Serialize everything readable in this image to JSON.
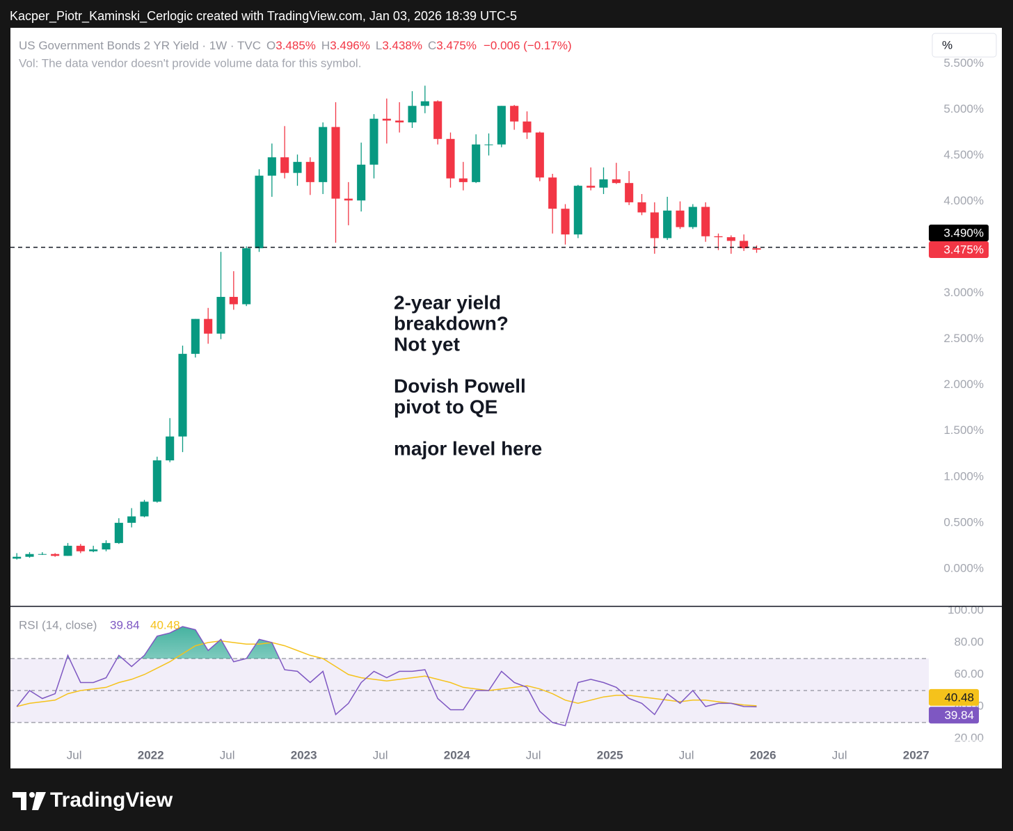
{
  "watermark": "Kacper_Piotr_Kaminski_Cerlogic created with TradingView.com, Jan 03, 2026 18:39 UTC-5",
  "footer": "TradingView",
  "unit_button": "%",
  "chart_data": {
    "type": "candlestick",
    "title": "US Government Bonds 2 YR Yield · 1W · TVC",
    "subtitle": "Vol: The data vendor doesn't provide volume data for this symbol.",
    "legend": {
      "labels": [
        "O",
        "H",
        "L",
        "C"
      ],
      "values": [
        "3.485%",
        "3.496%",
        "3.438%",
        "3.475%"
      ],
      "change": "−0.006 (−0.17%)"
    },
    "x": [
      "2021-02",
      "2021-03",
      "2021-04",
      "2021-05",
      "2021-06",
      "2021-07",
      "2021-08",
      "2021-09",
      "2021-10",
      "2021-11",
      "2021-12",
      "2022-01",
      "2022-02",
      "2022-03",
      "2022-04",
      "2022-05",
      "2022-06",
      "2022-07",
      "2022-08",
      "2022-09",
      "2022-10",
      "2022-11",
      "2022-12",
      "2023-01",
      "2023-02",
      "2023-03",
      "2023-04",
      "2023-05",
      "2023-06",
      "2023-07",
      "2023-08",
      "2023-09",
      "2023-10",
      "2023-11",
      "2023-12",
      "2024-01",
      "2024-02",
      "2024-03",
      "2024-04",
      "2024-05",
      "2024-06",
      "2024-07",
      "2024-08",
      "2024-09",
      "2024-10",
      "2024-11",
      "2024-12",
      "2025-01",
      "2025-02",
      "2025-03",
      "2025-04",
      "2025-05",
      "2025-06",
      "2025-07",
      "2025-08",
      "2025-09",
      "2025-10",
      "2025-11",
      "2025-12"
    ],
    "open": [
      0.11,
      0.13,
      0.16,
      0.16,
      0.14,
      0.25,
      0.19,
      0.21,
      0.28,
      0.5,
      0.57,
      0.73,
      1.18,
      1.44,
      2.34,
      2.72,
      2.56,
      2.96,
      2.88,
      3.49,
      4.28,
      4.48,
      4.31,
      4.43,
      4.21,
      4.81,
      4.03,
      4.01,
      4.4,
      4.9,
      4.88,
      4.86,
      5.04,
      5.09,
      4.68,
      4.25,
      4.21,
      4.62,
      4.62,
      5.04,
      4.87,
      4.75,
      4.26,
      3.92,
      3.64,
      4.17,
      4.15,
      4.24,
      4.2,
      3.99,
      3.88,
      3.6,
      3.9,
      3.72,
      3.94,
      3.62,
      3.61,
      3.57,
      3.49
    ],
    "high": [
      0.17,
      0.18,
      0.18,
      0.17,
      0.28,
      0.27,
      0.25,
      0.31,
      0.55,
      0.66,
      0.75,
      1.22,
      1.64,
      2.43,
      2.72,
      2.84,
      3.45,
      3.24,
      3.51,
      4.35,
      4.63,
      4.82,
      4.51,
      4.48,
      4.86,
      5.08,
      4.21,
      4.64,
      4.95,
      5.12,
      5.08,
      5.2,
      5.26,
      5.1,
      4.75,
      4.43,
      4.73,
      4.74,
      5.04,
      5.05,
      4.98,
      4.76,
      4.3,
      3.97,
      4.18,
      4.37,
      4.37,
      4.42,
      4.33,
      4.08,
      3.99,
      4.05,
      4.0,
      3.97,
      3.99,
      3.65,
      3.63,
      3.64,
      3.52
    ],
    "low": [
      0.1,
      0.12,
      0.15,
      0.13,
      0.14,
      0.17,
      0.18,
      0.19,
      0.27,
      0.45,
      0.56,
      0.72,
      1.16,
      1.27,
      2.3,
      2.45,
      2.5,
      2.82,
      2.86,
      3.45,
      4.05,
      4.25,
      4.17,
      4.07,
      4.08,
      3.55,
      3.74,
      3.89,
      4.25,
      4.63,
      4.75,
      4.8,
      4.96,
      4.62,
      4.15,
      4.12,
      4.2,
      4.5,
      4.59,
      4.78,
      4.68,
      4.22,
      3.65,
      3.53,
      3.6,
      4.12,
      4.08,
      4.19,
      3.96,
      3.85,
      3.43,
      3.58,
      3.7,
      3.7,
      3.56,
      3.47,
      3.43,
      3.46,
      3.44
    ],
    "close": [
      0.13,
      0.16,
      0.16,
      0.14,
      0.25,
      0.19,
      0.21,
      0.28,
      0.5,
      0.57,
      0.73,
      1.18,
      1.44,
      2.34,
      2.72,
      2.56,
      2.96,
      2.88,
      3.49,
      4.28,
      4.48,
      4.31,
      4.43,
      4.21,
      4.81,
      4.03,
      4.01,
      4.4,
      4.9,
      4.88,
      4.86,
      5.04,
      5.09,
      4.68,
      4.25,
      4.21,
      4.62,
      4.62,
      5.04,
      4.87,
      4.75,
      4.26,
      3.92,
      3.64,
      4.17,
      4.15,
      4.24,
      4.2,
      3.99,
      3.88,
      3.6,
      3.9,
      3.72,
      3.94,
      3.62,
      3.61,
      3.57,
      3.49,
      3.475
    ],
    "up_color": "#089981",
    "down_color": "#f23645",
    "xlim": [
      "2021-02",
      "2027-02"
    ],
    "xticks": [
      {
        "value": "2021-07",
        "label": "Jul"
      },
      {
        "value": "2022-01",
        "label": "2022"
      },
      {
        "value": "2022-07",
        "label": "Jul"
      },
      {
        "value": "2023-01",
        "label": "2023"
      },
      {
        "value": "2023-07",
        "label": "Jul"
      },
      {
        "value": "2024-01",
        "label": "2024"
      },
      {
        "value": "2024-07",
        "label": "Jul"
      },
      {
        "value": "2025-01",
        "label": "2025"
      },
      {
        "value": "2025-07",
        "label": "Jul"
      },
      {
        "value": "2026-01",
        "label": "2026"
      },
      {
        "value": "2026-07",
        "label": "Jul"
      },
      {
        "value": "2027-01",
        "label": "2027"
      }
    ],
    "ylim": [
      -0.41,
      5.89
    ],
    "yticks": [
      {
        "value": 0,
        "label": "0.000%"
      },
      {
        "value": 0.5,
        "label": "0.500%"
      },
      {
        "value": 1,
        "label": "1.000%"
      },
      {
        "value": 1.5,
        "label": "1.500%"
      },
      {
        "value": 2,
        "label": "2.000%"
      },
      {
        "value": 2.5,
        "label": "2.500%"
      },
      {
        "value": 3,
        "label": "3.000%"
      },
      {
        "value": 3.5,
        "label": "3.500%"
      },
      {
        "value": 4,
        "label": "4.000%"
      },
      {
        "value": 4.5,
        "label": "4.500%"
      },
      {
        "value": 5,
        "label": "5.000%"
      },
      {
        "value": 5.5,
        "label": "5.500%"
      }
    ],
    "level": 3.5,
    "price_labels": [
      {
        "value": 3.49,
        "label": "3.490%",
        "color": "#000000"
      },
      {
        "value": 3.475,
        "label": "3.475%",
        "color": "#f23645"
      }
    ],
    "annotation": [
      [
        "2-year yield",
        "breakdown?",
        "Not yet"
      ],
      [
        "Dovish Powell",
        "pivot to QE"
      ],
      [
        "major level here"
      ]
    ],
    "rsi": {
      "title": "RSI (14, close)",
      "ylim": [
        18.7,
        102.6
      ],
      "yticks": [
        {
          "value": 20,
          "label": "20.00"
        },
        {
          "value": 40,
          "label": "40.00"
        },
        {
          "value": 60,
          "label": "60.00"
        },
        {
          "value": 80,
          "label": "80.00"
        },
        {
          "value": 100,
          "label": "100.00"
        }
      ],
      "bands": [
        30,
        50,
        70
      ],
      "color": "#7e57c2",
      "ma_color": "#f5c21b",
      "values": [
        40,
        50,
        45,
        48,
        72,
        55,
        55,
        58,
        72,
        65,
        72,
        84,
        86,
        90,
        88,
        75,
        82,
        68,
        70,
        82,
        80,
        63,
        62,
        55,
        62,
        35,
        42,
        55,
        62,
        58,
        62,
        62,
        63,
        45,
        38,
        38,
        50,
        50,
        62,
        55,
        52,
        37,
        30,
        28,
        55,
        57,
        55,
        52,
        45,
        42,
        35,
        48,
        42,
        50,
        40,
        42,
        42,
        40,
        39.84
      ],
      "ma_values": [
        40,
        42,
        43,
        44,
        48,
        50,
        51,
        52,
        55,
        57,
        60,
        64,
        68,
        73,
        78,
        80,
        81,
        80,
        79,
        79,
        80,
        78,
        75,
        72,
        70,
        65,
        60,
        58,
        57,
        56,
        57,
        58,
        59,
        57,
        55,
        52,
        51,
        50,
        51,
        52,
        53,
        51,
        48,
        44,
        42,
        44,
        46,
        47,
        47,
        46,
        45,
        44,
        43,
        44,
        44,
        43,
        42,
        41,
        40.48
      ]
    }
  }
}
